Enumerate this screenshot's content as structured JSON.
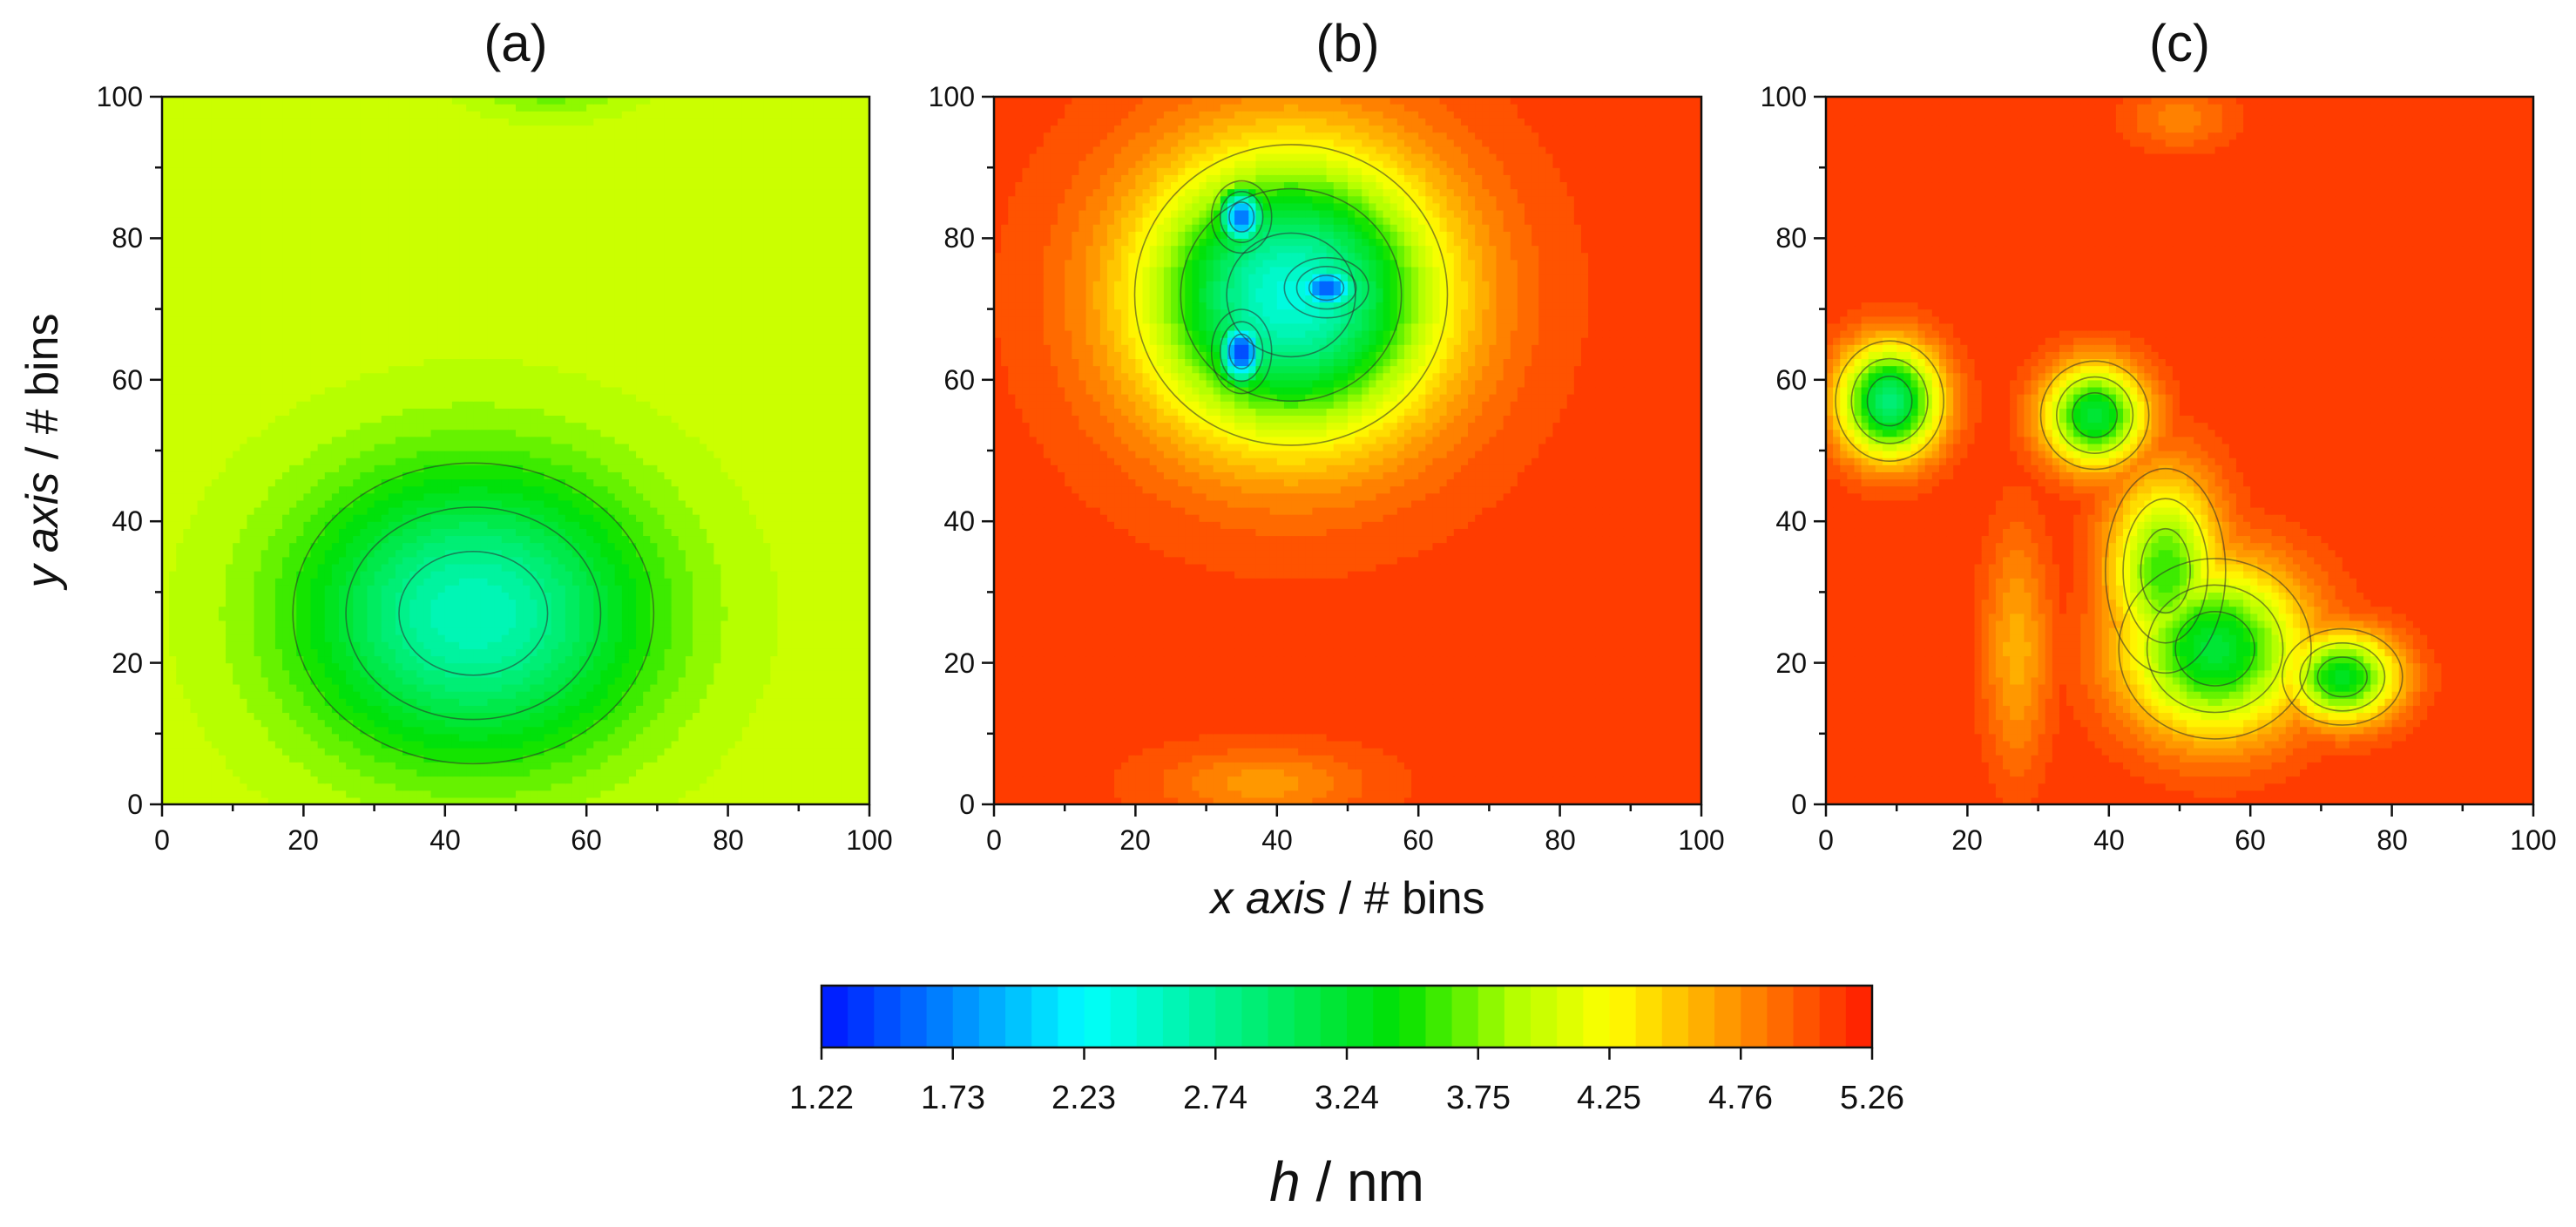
{
  "chart_data": [
    {
      "type": "heatmap",
      "title": "(a)",
      "xlabel_italic": "x axis",
      "xlabel_rest": " / # bins",
      "ylabel_italic": "y axis",
      "ylabel_rest": " / # bins",
      "xlim": [
        0,
        100
      ],
      "ylim": [
        0,
        100
      ],
      "xticks": [
        "0",
        "20",
        "40",
        "60",
        "80",
        "100"
      ],
      "yticks": [
        "0",
        "20",
        "40",
        "60",
        "80",
        "100"
      ],
      "background_h": 4.0,
      "features": [
        {
          "kind": "well",
          "x": 44,
          "y": 27,
          "rx": 30,
          "ry": 25,
          "min_h": 2.55
        },
        {
          "kind": "well",
          "x": 55,
          "y": 103,
          "rx": 14,
          "ry": 6,
          "min_h": 3.55
        }
      ]
    },
    {
      "type": "heatmap",
      "title": "(b)",
      "xlim": [
        0,
        100
      ],
      "ylim": [
        0,
        100
      ],
      "xticks": [
        "0",
        "20",
        "40",
        "60",
        "80",
        "100"
      ],
      "yticks": [
        "0",
        "20",
        "40",
        "60",
        "80",
        "100"
      ],
      "background_h": 5.1,
      "features": [
        {
          "kind": "well",
          "x": 42,
          "y": 72,
          "rx": 26,
          "ry": 25,
          "min_h": 2.4
        },
        {
          "kind": "well",
          "x": 35,
          "y": 64,
          "rx": 5,
          "ry": 7,
          "min_h": 1.4
        },
        {
          "kind": "well",
          "x": 35,
          "y": 83,
          "rx": 5,
          "ry": 6,
          "min_h": 1.6
        },
        {
          "kind": "well",
          "x": 47,
          "y": 73,
          "rx": 7,
          "ry": 5,
          "min_h": 1.5
        },
        {
          "kind": "well",
          "x": 38,
          "y": 3,
          "rx": 18,
          "ry": 6,
          "min_h": 4.7
        }
      ]
    },
    {
      "type": "heatmap",
      "title": "(c)",
      "xlim": [
        0,
        100
      ],
      "ylim": [
        0,
        100
      ],
      "xticks": [
        "0",
        "20",
        "40",
        "60",
        "80",
        "100"
      ],
      "yticks": [
        "0",
        "20",
        "40",
        "60",
        "80",
        "100"
      ],
      "background_h": 5.15,
      "features": [
        {
          "kind": "well",
          "x": 9,
          "y": 57,
          "rx": 9,
          "ry": 10,
          "min_h": 2.9
        },
        {
          "kind": "well",
          "x": 38,
          "y": 55,
          "rx": 9,
          "ry": 9,
          "min_h": 3.15
        },
        {
          "kind": "well",
          "x": 48,
          "y": 33,
          "rx": 10,
          "ry": 17,
          "min_h": 3.55
        },
        {
          "kind": "well",
          "x": 55,
          "y": 22,
          "rx": 16,
          "ry": 15,
          "min_h": 3.2
        },
        {
          "kind": "well",
          "x": 73,
          "y": 18,
          "rx": 10,
          "ry": 8,
          "min_h": 3.3
        },
        {
          "kind": "well",
          "x": 27,
          "y": 22,
          "rx": 6,
          "ry": 22,
          "min_h": 4.6
        },
        {
          "kind": "well",
          "x": 50,
          "y": 97,
          "rx": 10,
          "ry": 6,
          "min_h": 4.8
        }
      ]
    }
  ],
  "colorbar": {
    "min": 1.22,
    "max": 5.26,
    "tick_labels": [
      "1.22",
      "1.73",
      "2.23",
      "2.74",
      "3.24",
      "3.75",
      "4.25",
      "4.76",
      "5.26"
    ],
    "label_italic": "h",
    "label_rest": " / nm",
    "levels": 40
  },
  "colors": {
    "blue": "#0014ff",
    "cyan": "#00ffff",
    "green": "#00e000",
    "yellow_green": "#b4ff00",
    "yellow": "#ffff00",
    "orange": "#ff9a00",
    "red": "#ff1a00",
    "contour": "#2b2b2b"
  }
}
